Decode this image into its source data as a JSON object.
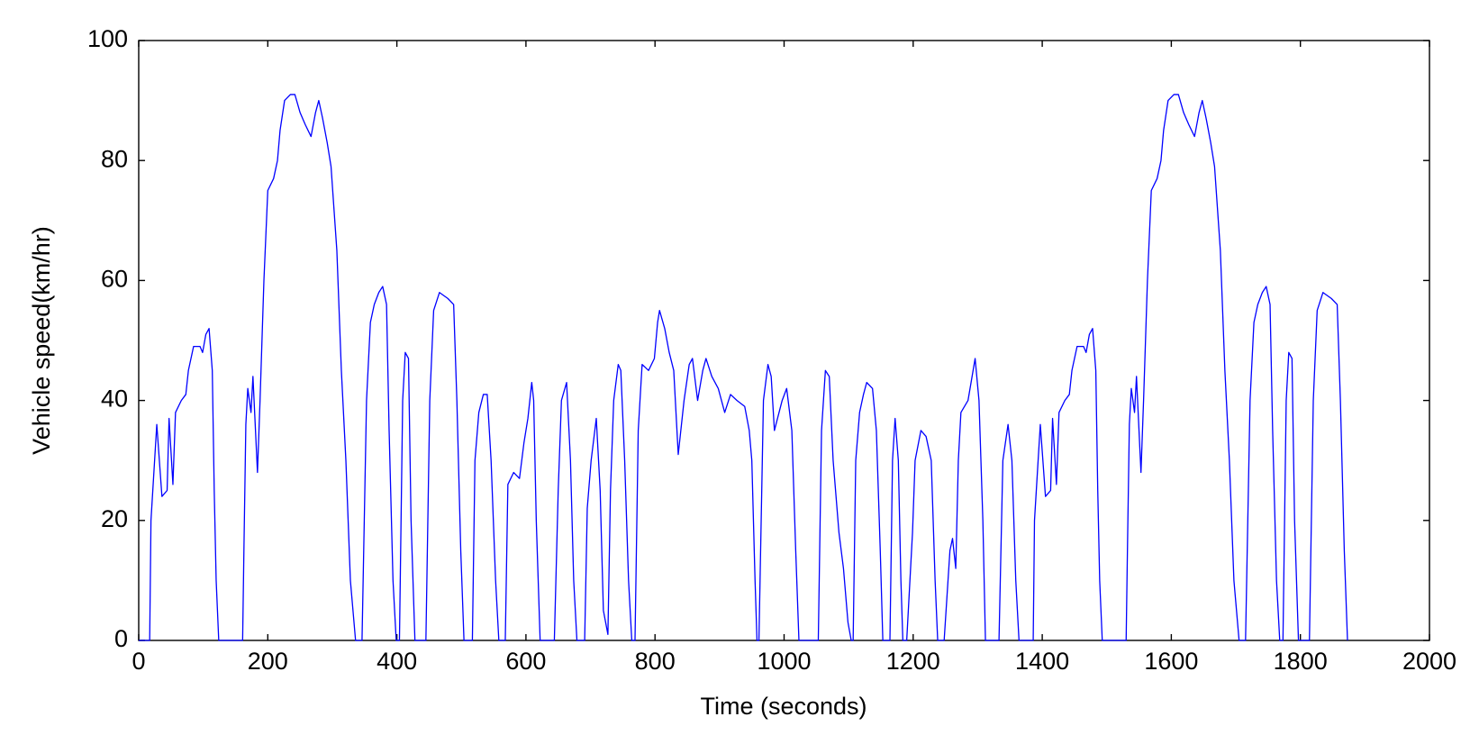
{
  "chart_data": {
    "type": "line",
    "xlabel": "Time (seconds)",
    "ylabel": "Vehicle speed(km/hr)",
    "xlim": [
      0,
      2000
    ],
    "ylim": [
      0,
      100
    ],
    "xticks": [
      0,
      200,
      400,
      600,
      800,
      1000,
      1200,
      1400,
      1600,
      1800,
      2000
    ],
    "yticks": [
      0,
      20,
      40,
      60,
      80,
      100
    ],
    "grid": false,
    "x": [
      0,
      17,
      19,
      28,
      36,
      44,
      47,
      53,
      57,
      66,
      73,
      77,
      85,
      95,
      99,
      104,
      109,
      114,
      117,
      120,
      124,
      161,
      163,
      166,
      169,
      174,
      177,
      184,
      188,
      194,
      200,
      209,
      215,
      219,
      226,
      235,
      242,
      250,
      258,
      267,
      274,
      279,
      285,
      292,
      298,
      307,
      314,
      321,
      328,
      336,
      346,
      353,
      359,
      365,
      372,
      378,
      384,
      388,
      394,
      399,
      404,
      409,
      413,
      418,
      422,
      428,
      445,
      451,
      457,
      466,
      479,
      488,
      493,
      499,
      504,
      517,
      521,
      527,
      534,
      540,
      546,
      553,
      558,
      568,
      572,
      581,
      590,
      597,
      603,
      609,
      612,
      616,
      622,
      644,
      650,
      655,
      663,
      669,
      674,
      679,
      691,
      695,
      701,
      709,
      715,
      720,
      727,
      731,
      736,
      743,
      747,
      753,
      759,
      764,
      769,
      774,
      780,
      790,
      799,
      804,
      807,
      815,
      822,
      829,
      836,
      845,
      853,
      858,
      866,
      874,
      879,
      888,
      898,
      908,
      917,
      927,
      939,
      946,
      950,
      955,
      958,
      961,
      968,
      975,
      980,
      985,
      997,
      1004,
      1012,
      1018,
      1023,
      1053,
      1058,
      1064,
      1070,
      1076,
      1085,
      1092,
      1099,
      1104,
      1107,
      1111,
      1117,
      1123,
      1128,
      1137,
      1143,
      1149,
      1153,
      1164,
      1168,
      1172,
      1177,
      1181,
      1184,
      1190,
      1199,
      1203,
      1212,
      1220,
      1228,
      1234,
      1238,
      1248,
      1257,
      1261,
      1266,
      1270,
      1274,
      1285,
      1296,
      1302,
      1308,
      1312,
      1333,
      1339,
      1347,
      1353,
      1359,
      1364,
      1386,
      1388,
      1397,
      1405,
      1413,
      1416,
      1422,
      1426,
      1435,
      1442,
      1446,
      1454,
      1464,
      1468,
      1473,
      1478,
      1483,
      1486,
      1489,
      1493,
      1530,
      1532,
      1535,
      1538,
      1543,
      1546,
      1553,
      1557,
      1563,
      1569,
      1578,
      1584,
      1588,
      1595,
      1604,
      1611,
      1619,
      1627,
      1636,
      1643,
      1648,
      1654,
      1661,
      1667,
      1676,
      1683,
      1690,
      1697,
      1705,
      1715,
      1722,
      1728,
      1734,
      1741,
      1747,
      1753,
      1757,
      1763,
      1768,
      1773,
      1778,
      1782,
      1787,
      1791,
      1797,
      1814,
      1820,
      1826,
      1835,
      1848,
      1857,
      1862,
      1868,
      1873
    ],
    "series": [
      {
        "name": "Vehicle speed",
        "color": "#0000ff",
        "values": [
          0,
          0,
          20,
          36,
          24,
          25,
          37,
          26,
          38,
          40,
          41,
          45,
          49,
          49,
          48,
          51,
          52,
          45,
          25,
          10,
          0,
          0,
          15,
          36,
          42,
          38,
          44,
          28,
          40,
          60,
          75,
          77,
          80,
          85,
          90,
          91,
          91,
          88,
          86,
          84,
          88,
          90,
          87,
          83,
          79,
          65,
          45,
          30,
          10,
          0,
          0,
          40,
          53,
          56,
          58,
          59,
          56,
          35,
          10,
          0,
          0,
          40,
          48,
          47,
          20,
          0,
          0,
          40,
          55,
          58,
          57,
          56,
          40,
          15,
          0,
          0,
          30,
          38,
          41,
          41,
          30,
          10,
          0,
          0,
          26,
          28,
          27,
          33,
          37,
          43,
          40,
          20,
          0,
          0,
          25,
          40,
          43,
          30,
          10,
          0,
          0,
          22,
          30,
          37,
          25,
          5,
          1,
          25,
          40,
          46,
          45,
          30,
          10,
          0,
          0,
          35,
          46,
          45,
          47,
          53,
          55,
          52,
          48,
          45,
          31,
          40,
          46,
          47,
          40,
          45,
          47,
          44,
          42,
          38,
          41,
          40,
          39,
          35,
          30,
          10,
          0,
          0,
          40,
          46,
          44,
          35,
          40,
          42,
          35,
          15,
          0,
          0,
          35,
          45,
          44,
          30,
          18,
          12,
          3,
          0,
          0,
          30,
          38,
          41,
          43,
          42,
          35,
          15,
          0,
          0,
          30,
          37,
          30,
          10,
          0,
          0,
          18,
          30,
          35,
          34,
          30,
          10,
          0,
          0,
          15,
          17,
          12,
          30,
          38,
          40,
          47,
          40,
          20,
          0,
          0,
          30,
          36,
          30,
          10,
          0,
          0,
          20,
          36,
          24,
          25,
          37,
          26,
          38,
          40,
          41,
          45,
          49,
          49,
          48,
          51,
          52,
          45,
          25,
          10,
          0,
          0,
          15,
          36,
          42,
          38,
          44,
          28,
          40,
          60,
          75,
          77,
          80,
          85,
          90,
          91,
          91,
          88,
          86,
          84,
          88,
          90,
          87,
          83,
          79,
          65,
          45,
          30,
          10,
          0,
          0,
          40,
          53,
          56,
          58,
          59,
          56,
          35,
          10,
          0,
          0,
          40,
          48,
          47,
          20,
          0,
          0,
          40,
          55,
          58,
          57,
          56,
          40,
          15,
          0
        ]
      }
    ]
  }
}
